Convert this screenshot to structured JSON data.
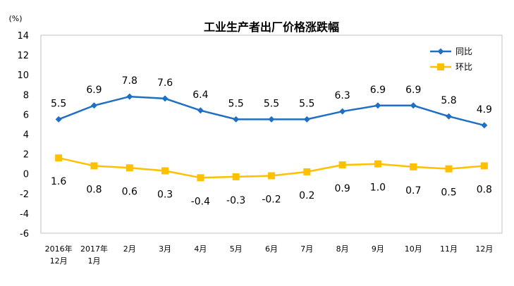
{
  "chart_data": {
    "type": "line",
    "title": "工业生产者出厂价格涨跌幅",
    "unit": "(%)",
    "categories": [
      [
        "2016年",
        "12月"
      ],
      [
        "2017年",
        "1月"
      ],
      [
        "2月"
      ],
      [
        "3月"
      ],
      [
        "4月"
      ],
      [
        "5月"
      ],
      [
        "6月"
      ],
      [
        "7月"
      ],
      [
        "8月"
      ],
      [
        "9月"
      ],
      [
        "10月"
      ],
      [
        "11月"
      ],
      [
        "12月"
      ]
    ],
    "ylim": [
      -6,
      14
    ],
    "yticks": [
      -6,
      -4,
      -2,
      0,
      2,
      4,
      6,
      8,
      10,
      12,
      14
    ],
    "series": [
      {
        "name": "同比",
        "color": "#1f6fc5",
        "marker": "diamond",
        "values": [
          5.5,
          6.9,
          7.8,
          7.6,
          6.4,
          5.5,
          5.5,
          5.5,
          6.3,
          6.9,
          6.9,
          5.8,
          4.9
        ],
        "labels": [
          "5.5",
          "6.9",
          "7.8",
          "7.6",
          "6.4",
          "5.5",
          "5.5",
          "5.5",
          "6.3",
          "6.9",
          "6.9",
          "5.8",
          "4.9"
        ],
        "label_position": "above"
      },
      {
        "name": "环比",
        "color": "#ffc000",
        "marker": "square",
        "values": [
          1.6,
          0.8,
          0.6,
          0.3,
          -0.4,
          -0.3,
          -0.2,
          0.2,
          0.9,
          1.0,
          0.7,
          0.5,
          0.8
        ],
        "labels": [
          "1.6",
          "0.8",
          "0.6",
          "0.3",
          "-0.4",
          "-0.3",
          "-0.2",
          "0.2",
          "0.9",
          "1.0",
          "0.7",
          "0.5",
          "0.8"
        ],
        "label_position": "below"
      }
    ],
    "legend_position": "top-right",
    "grid": false
  }
}
